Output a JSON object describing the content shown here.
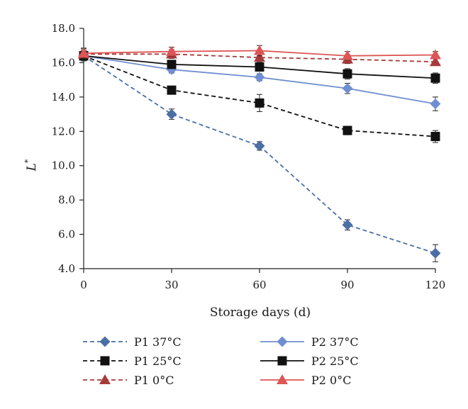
{
  "chart_data": {
    "type": "line",
    "title": "",
    "xlabel": "Storage days (d)",
    "ylabel_main": "L",
    "ylabel_sup": "*",
    "x": [
      0,
      30,
      60,
      90,
      120
    ],
    "x_ticks": [
      "0",
      "30",
      "60",
      "90",
      "120"
    ],
    "xlim": [
      0,
      120
    ],
    "ylim": [
      4.0,
      18.0
    ],
    "y_ticks": [
      "4.0",
      "6.0",
      "8.0",
      "10.0",
      "12.0",
      "14.0",
      "16.0",
      "18.0"
    ],
    "grid": false,
    "legend_placement": "bottom",
    "series": [
      {
        "name": "P1 37°C",
        "color": "#4a6fa5",
        "marker": "diamond",
        "dash": "dashed",
        "values": [
          16.4,
          13.0,
          11.15,
          6.55,
          4.9
        ],
        "errors": [
          0.3,
          0.3,
          0.25,
          0.3,
          0.5
        ]
      },
      {
        "name": "P2 37°C",
        "color": "#6f8fd0",
        "marker": "diamond",
        "dash": "solid",
        "values": [
          16.4,
          15.6,
          15.15,
          14.5,
          13.6
        ],
        "errors": [
          0.3,
          0.2,
          0.2,
          0.3,
          0.4
        ]
      },
      {
        "name": "P1 25°C",
        "color": "#111111",
        "marker": "square",
        "dash": "dashed",
        "values": [
          16.4,
          14.4,
          13.65,
          12.05,
          11.7
        ],
        "errors": [
          0.3,
          0.2,
          0.5,
          0.25,
          0.35
        ]
      },
      {
        "name": "P2 25°C",
        "color": "#111111",
        "marker": "square",
        "dash": "solid",
        "values": [
          16.4,
          15.9,
          15.75,
          15.35,
          15.1
        ],
        "errors": [
          0.3,
          0.2,
          0.25,
          0.3,
          0.3
        ]
      },
      {
        "name": "P1 0°C",
        "color": "#a83a3a",
        "marker": "triangle",
        "dash": "dashed",
        "values": [
          16.5,
          16.5,
          16.3,
          16.2,
          16.05
        ],
        "errors": [
          0.3,
          0.25,
          0.25,
          0.25,
          0.2
        ]
      },
      {
        "name": "P2 0°C",
        "color": "#dd5555",
        "marker": "triangle",
        "dash": "solid",
        "values": [
          16.55,
          16.65,
          16.7,
          16.4,
          16.45
        ],
        "errors": [
          0.3,
          0.25,
          0.3,
          0.25,
          0.2
        ]
      }
    ]
  }
}
